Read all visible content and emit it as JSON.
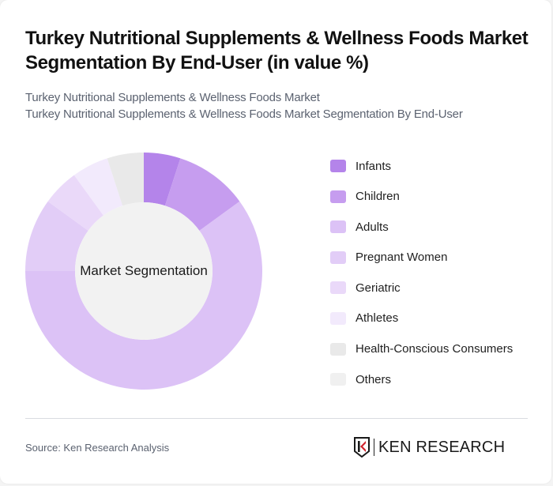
{
  "header": {
    "title": "Turkey Nutritional Supplements & Wellness Foods Market Segmentation By End-User (in value %)",
    "subtitle_line1": "Turkey Nutritional Supplements & Wellness Foods Market",
    "subtitle_line2": "Turkey Nutritional Supplements & Wellness Foods Market Segmentation By End-User"
  },
  "chart": {
    "center_label": "Market Segmentation"
  },
  "legend": [
    {
      "label": "Infants",
      "color": "#b484ea"
    },
    {
      "label": "Children",
      "color": "#c69def"
    },
    {
      "label": "Adults",
      "color": "#dcc2f6"
    },
    {
      "label": "Pregnant Women",
      "color": "#e2cdf7"
    },
    {
      "label": "Geriatric",
      "color": "#ead9f9"
    },
    {
      "label": "Athletes",
      "color": "#f2eafc"
    },
    {
      "label": "Health-Conscious Consumers",
      "color": "#e9e9e9"
    },
    {
      "label": "Others",
      "color": "#f0f0f0"
    }
  ],
  "footer": {
    "source": "Source: Ken Research Analysis",
    "logo_text": "KEN RESEARCH"
  },
  "chart_data": {
    "type": "pie",
    "subtype": "donut",
    "title": "Turkey Nutritional Supplements & Wellness Foods Market Segmentation By End-User (in value %)",
    "center_label": "Market Segmentation",
    "categories": [
      "Infants",
      "Children",
      "Adults",
      "Pregnant Women",
      "Geriatric",
      "Athletes",
      "Health-Conscious Consumers",
      "Others"
    ],
    "values": [
      5,
      10,
      60,
      10,
      5,
      5,
      5,
      0
    ],
    "colors": [
      "#b484ea",
      "#c69def",
      "#dcc2f6",
      "#e2cdf7",
      "#ead9f9",
      "#f2eafc",
      "#e9e9e9",
      "#f0f0f0"
    ],
    "unit": "%",
    "legend_position": "right",
    "start_angle": "top (12 o'clock), clockwise",
    "source": "Source: Ken Research Analysis"
  }
}
